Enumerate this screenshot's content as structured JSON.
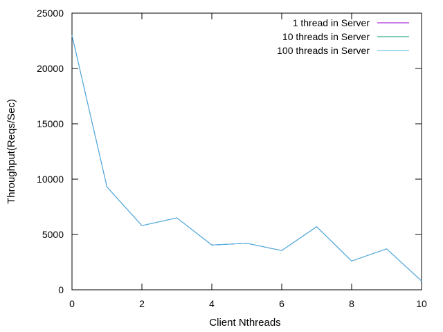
{
  "chart_data": {
    "type": "line",
    "title": "",
    "xlabel": "Client Nthreads",
    "ylabel": "Throughput(Reqs/Sec)",
    "xlim": [
      0,
      10
    ],
    "ylim": [
      0,
      25000
    ],
    "xticks": [
      0,
      2,
      4,
      6,
      8,
      10
    ],
    "yticks": [
      0,
      5000,
      10000,
      15000,
      20000,
      25000
    ],
    "grid": false,
    "legend_position": "top-right",
    "x": [
      0,
      1,
      2,
      3,
      4,
      5,
      6,
      7,
      8,
      9,
      10
    ],
    "series": [
      {
        "name": "1 thread in Server",
        "color": "#9400d3",
        "values": [
          23000,
          9300,
          5800,
          6500,
          4050,
          4200,
          3550,
          5700,
          2600,
          3700,
          800
        ]
      },
      {
        "name": "10 threads in Server",
        "color": "#009e73",
        "values": [
          23000,
          9300,
          5800,
          6500,
          4050,
          4200,
          3550,
          5700,
          2600,
          3700,
          800
        ]
      },
      {
        "name": "100 threads in Server",
        "color": "#56b4e9",
        "values": [
          23000,
          9300,
          5800,
          6500,
          4050,
          4200,
          3550,
          5700,
          2600,
          3700,
          800
        ]
      }
    ]
  }
}
